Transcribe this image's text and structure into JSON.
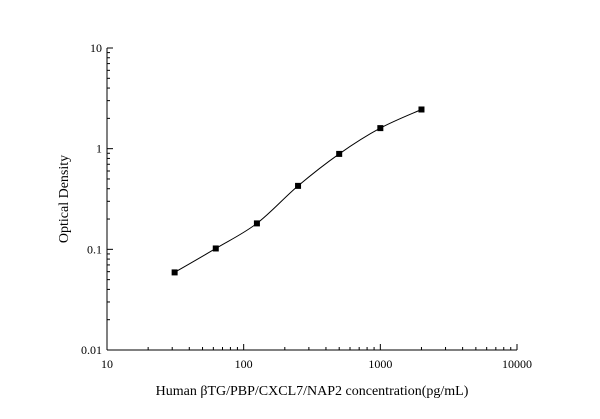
{
  "chart_data": {
    "type": "scatter",
    "title": "",
    "xlabel": "Human βTG/PBP/CXCL7/NAP2 concentration(pg/mL)",
    "ylabel": "Optical Density",
    "x_scale": "log",
    "y_scale": "log",
    "xlim": [
      10,
      10000
    ],
    "ylim": [
      0.01,
      10
    ],
    "x_ticks": [
      {
        "value": 10,
        "label": "10"
      },
      {
        "value": 100,
        "label": "100"
      },
      {
        "value": 1000,
        "label": "1000"
      },
      {
        "value": 10000,
        "label": "10000"
      }
    ],
    "y_ticks": [
      {
        "value": 0.01,
        "label": "0.01"
      },
      {
        "value": 0.1,
        "label": "0.1"
      },
      {
        "value": 1,
        "label": "1"
      },
      {
        "value": 10,
        "label": "10"
      }
    ],
    "grid": false,
    "legend": "none",
    "series": [
      {
        "x": [
          31.25,
          62.5,
          125,
          250,
          500,
          1000,
          2000
        ],
        "y": [
          0.059,
          0.102,
          0.181,
          0.427,
          0.887,
          1.6,
          2.45
        ],
        "marker": "square",
        "fit_line": true
      }
    ],
    "colors": {
      "points": "#000000",
      "line": "#000000",
      "axes": "#000000"
    }
  }
}
